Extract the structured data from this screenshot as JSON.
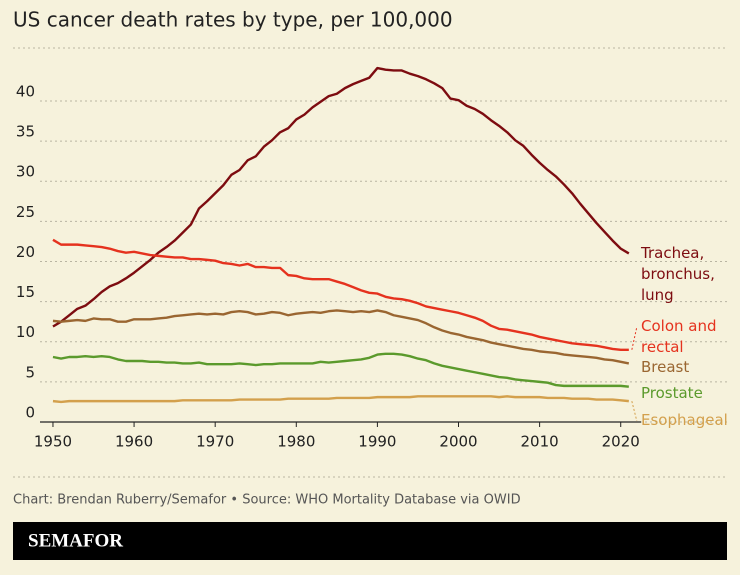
{
  "chart_data": {
    "type": "line",
    "title": "US cancer death rates by type, per 100,000",
    "x": [
      1950,
      1951,
      1952,
      1953,
      1954,
      1955,
      1956,
      1957,
      1958,
      1959,
      1960,
      1961,
      1962,
      1963,
      1964,
      1965,
      1966,
      1967,
      1968,
      1969,
      1970,
      1971,
      1972,
      1973,
      1974,
      1975,
      1976,
      1977,
      1978,
      1979,
      1980,
      1981,
      1982,
      1983,
      1984,
      1985,
      1986,
      1987,
      1988,
      1989,
      1990,
      1991,
      1992,
      1993,
      1994,
      1995,
      1996,
      1997,
      1998,
      1999,
      2000,
      2001,
      2002,
      2003,
      2004,
      2005,
      2006,
      2007,
      2008,
      2009,
      2010,
      2011,
      2012,
      2013,
      2014,
      2015,
      2016,
      2017,
      2018,
      2019,
      2020,
      2021
    ],
    "series": [
      {
        "name": "Trachea, bronchus, lung",
        "color": "#7d0c10",
        "values": [
          11.9,
          12.5,
          13.3,
          14.1,
          14.5,
          15.3,
          16.2,
          16.9,
          17.3,
          17.9,
          18.6,
          19.4,
          20.2,
          21.1,
          21.8,
          22.6,
          23.6,
          24.6,
          26.6,
          27.5,
          28.5,
          29.5,
          30.8,
          31.4,
          32.6,
          33.1,
          34.3,
          35.1,
          36.1,
          36.6,
          37.7,
          38.3,
          39.2,
          39.9,
          40.6,
          40.9,
          41.6,
          42.1,
          42.5,
          42.9,
          44.1,
          43.9,
          43.8,
          43.8,
          43.4,
          43.1,
          42.7,
          42.2,
          41.6,
          40.3,
          40.1,
          39.4,
          39.0,
          38.4,
          37.6,
          36.9,
          36.1,
          35.1,
          34.4,
          33.3,
          32.3,
          31.4,
          30.6,
          29.6,
          28.5,
          27.2,
          26.0,
          24.8,
          23.7,
          22.6,
          21.6,
          21.0
        ]
      },
      {
        "name": "Colon and rectal",
        "color": "#e5321e",
        "values": [
          22.7,
          22.1,
          22.1,
          22.1,
          22.0,
          21.9,
          21.8,
          21.6,
          21.3,
          21.1,
          21.2,
          21.0,
          20.8,
          20.7,
          20.6,
          20.5,
          20.5,
          20.3,
          20.3,
          20.2,
          20.1,
          19.8,
          19.7,
          19.5,
          19.7,
          19.3,
          19.3,
          19.2,
          19.2,
          18.3,
          18.2,
          17.9,
          17.8,
          17.8,
          17.8,
          17.5,
          17.2,
          16.8,
          16.4,
          16.1,
          16.0,
          15.6,
          15.4,
          15.3,
          15.1,
          14.8,
          14.4,
          14.2,
          14.0,
          13.8,
          13.6,
          13.3,
          13.0,
          12.6,
          12.0,
          11.6,
          11.5,
          11.3,
          11.1,
          10.9,
          10.6,
          10.4,
          10.2,
          10.0,
          9.8,
          9.7,
          9.6,
          9.5,
          9.3,
          9.1,
          9.0,
          9.0
        ]
      },
      {
        "name": "Breast",
        "color": "#9a6631",
        "values": [
          12.6,
          12.5,
          12.6,
          12.7,
          12.6,
          12.9,
          12.8,
          12.8,
          12.5,
          12.5,
          12.8,
          12.8,
          12.8,
          12.9,
          13.0,
          13.2,
          13.3,
          13.4,
          13.5,
          13.4,
          13.5,
          13.4,
          13.7,
          13.8,
          13.7,
          13.4,
          13.5,
          13.7,
          13.6,
          13.3,
          13.5,
          13.6,
          13.7,
          13.6,
          13.8,
          13.9,
          13.8,
          13.7,
          13.8,
          13.7,
          13.9,
          13.7,
          13.3,
          13.1,
          12.9,
          12.7,
          12.3,
          11.8,
          11.4,
          11.1,
          10.9,
          10.6,
          10.4,
          10.2,
          9.9,
          9.7,
          9.5,
          9.3,
          9.1,
          9.0,
          8.8,
          8.7,
          8.6,
          8.4,
          8.3,
          8.2,
          8.1,
          8.0,
          7.8,
          7.7,
          7.5,
          7.3
        ]
      },
      {
        "name": "Prostate",
        "color": "#5b9a2c",
        "values": [
          8.1,
          7.9,
          8.1,
          8.1,
          8.2,
          8.1,
          8.2,
          8.1,
          7.8,
          7.6,
          7.6,
          7.6,
          7.5,
          7.5,
          7.4,
          7.4,
          7.3,
          7.3,
          7.4,
          7.2,
          7.2,
          7.2,
          7.2,
          7.3,
          7.2,
          7.1,
          7.2,
          7.2,
          7.3,
          7.3,
          7.3,
          7.3,
          7.3,
          7.5,
          7.4,
          7.5,
          7.6,
          7.7,
          7.8,
          8.0,
          8.4,
          8.5,
          8.5,
          8.4,
          8.2,
          7.9,
          7.7,
          7.3,
          7.0,
          6.8,
          6.6,
          6.4,
          6.2,
          6.0,
          5.8,
          5.6,
          5.5,
          5.3,
          5.2,
          5.1,
          5.0,
          4.9,
          4.6,
          4.5,
          4.5,
          4.5,
          4.5,
          4.5,
          4.5,
          4.5,
          4.5,
          4.4
        ]
      },
      {
        "name": "Esophageal",
        "color": "#d3a04c",
        "values": [
          2.6,
          2.5,
          2.6,
          2.6,
          2.6,
          2.6,
          2.6,
          2.6,
          2.6,
          2.6,
          2.6,
          2.6,
          2.6,
          2.6,
          2.6,
          2.6,
          2.7,
          2.7,
          2.7,
          2.7,
          2.7,
          2.7,
          2.7,
          2.8,
          2.8,
          2.8,
          2.8,
          2.8,
          2.8,
          2.9,
          2.9,
          2.9,
          2.9,
          2.9,
          2.9,
          3.0,
          3.0,
          3.0,
          3.0,
          3.0,
          3.1,
          3.1,
          3.1,
          3.1,
          3.1,
          3.2,
          3.2,
          3.2,
          3.2,
          3.2,
          3.2,
          3.2,
          3.2,
          3.2,
          3.2,
          3.1,
          3.2,
          3.1,
          3.1,
          3.1,
          3.1,
          3.0,
          3.0,
          3.0,
          2.9,
          2.9,
          2.9,
          2.8,
          2.8,
          2.8,
          2.7,
          2.6
        ]
      }
    ],
    "xlim": [
      1948.5,
      2022.5
    ],
    "xticks": [
      1950,
      1960,
      1970,
      1980,
      1990,
      2000,
      2010,
      2020
    ],
    "ylim": [
      0,
      46.6
    ],
    "yticks": [
      0,
      5,
      10,
      15,
      20,
      25,
      30,
      35,
      40
    ],
    "grid": true
  },
  "footer": {
    "source": "Chart: Brendan Ruberry/Semafor • Source: WHO Mortality Database via OWID",
    "brand": "SEMAFOR"
  }
}
